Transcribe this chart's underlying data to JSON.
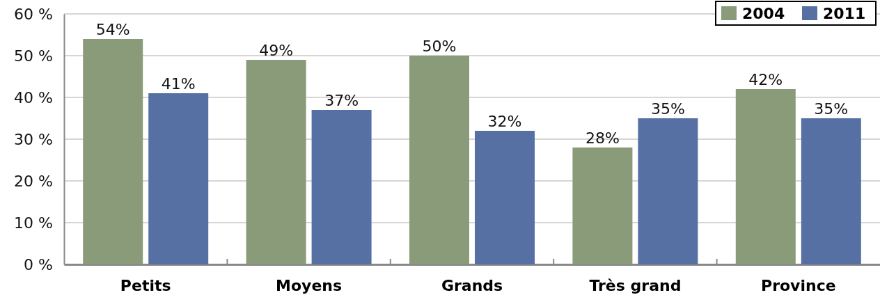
{
  "chart_data": {
    "type": "bar",
    "categories": [
      "Petits",
      "Moyens",
      "Grands",
      "Très grand",
      "Province"
    ],
    "series": [
      {
        "name": "2004",
        "color": "#8a9b79",
        "values": [
          54,
          49,
          50,
          28,
          42
        ],
        "value_labels": [
          "54%",
          "49%",
          "50%",
          "28%",
          "42%"
        ]
      },
      {
        "name": "2011",
        "color": "#5670a3",
        "values": [
          41,
          37,
          32,
          35,
          35
        ],
        "value_labels": [
          "41%",
          "37%",
          "32%",
          "35%",
          "35%"
        ]
      }
    ],
    "ylim": [
      0,
      60
    ],
    "yticks": [
      {
        "value": 0,
        "label": "0 %"
      },
      {
        "value": 10,
        "label": "10 %"
      },
      {
        "value": 20,
        "label": "20 %"
      },
      {
        "value": 30,
        "label": "30 %"
      },
      {
        "value": 40,
        "label": "40 %"
      },
      {
        "value": 50,
        "label": "50 %"
      },
      {
        "value": 60,
        "label": "60 %"
      }
    ],
    "grid": "y",
    "legend": "top right"
  }
}
